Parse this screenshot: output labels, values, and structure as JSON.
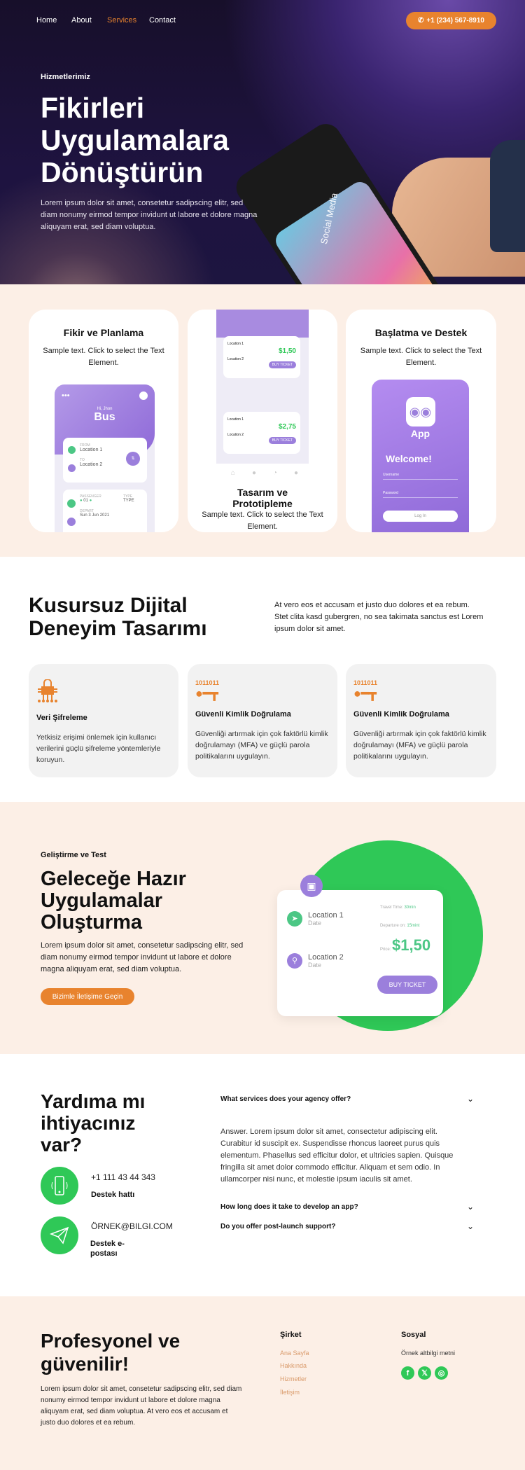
{
  "nav": {
    "items": [
      "Home",
      "About",
      "Services",
      "Contact"
    ],
    "active": "Services",
    "phone": "+1 (234) 567-8910"
  },
  "hero": {
    "eyebrow": "Hizmetlerimiz",
    "title_lines": [
      "Fikirleri",
      "Uygulamalara",
      "Dönüştürün"
    ],
    "text": "Lorem ipsum dolor sit amet, consetetur sadipscing elitr, sed diam nonumy eirmod tempor invidunt ut labore et dolore magna aliquyam erat, sed diam voluptua.",
    "phone_label": "Social Media"
  },
  "process": [
    {
      "title": "Fikir ve Planlama",
      "text": "Sample text. Click to select the Text Element.",
      "mock": {
        "greeting": "Hi, Jhon",
        "title": "Bus",
        "from_label": "FROM",
        "from": "Location 1",
        "to_label": "TO",
        "to": "Location 2",
        "passenger_label": "PASSENGER",
        "passenger": "01",
        "type_label": "TYPE",
        "type": "TYPE",
        "depart_label": "DEPART",
        "depart": "Sun 3 Jun 2021"
      }
    },
    {
      "title": "Tasarım ve Prototipleme",
      "text": "Sample text. Click to select the Text Element.",
      "mock": {
        "loc1": "Location 1",
        "loc2": "Location 2",
        "price1": "$1,50",
        "price2": "$2,75",
        "buy": "BUY TICKET"
      }
    },
    {
      "title": "Başlatma ve Destek",
      "text": "Sample text. Click to select the Text Element.",
      "mock": {
        "app": "App",
        "welcome": "Welcome!",
        "username": "Username",
        "password": "Password",
        "login": "Log In"
      }
    }
  ],
  "design": {
    "title_lines": [
      "Kusursuz Dijital",
      "Deneyim Tasarımı"
    ],
    "text": "At vero eos et accusam et justo duo dolores et ea rebum. Stet clita kasd gubergren, no sea takimata sanctus est Lorem ipsum dolor sit amet.",
    "features": [
      {
        "icon": "lock-network-icon",
        "title": "Veri Şifreleme",
        "text": "Yetkisiz erişimi önlemek için kullanıcı verilerini güçlü şifreleme yöntemleriyle koruyun."
      },
      {
        "icon": "binary-key-icon",
        "title": "Güvenli Kimlik Doğrulama",
        "text": "Güvenliği artırmak için çok faktörlü kimlik doğrulamayı (MFA) ve güçlü parola politikalarını uygulayın."
      },
      {
        "icon": "binary-key-icon",
        "title": "Güvenli Kimlik Doğrulama",
        "text": "Güvenliği artırmak için çok faktörlü kimlik doğrulamayı (MFA) ve güçlü parola politikalarını uygulayın."
      }
    ],
    "binary": "1011011"
  },
  "dev": {
    "eyebrow": "Geliştirme ve Test",
    "title_lines": [
      "Geleceğe Hazır",
      "Uygulamalar",
      "Oluşturma"
    ],
    "text": "Lorem ipsum dolor sit amet, consetetur sadipscing elitr, sed diam nonumy eirmod tempor invidunt ut labore et dolore magna aliquyam erat, sed diam voluptua.",
    "cta": "Bizimle İletişime Geçin",
    "ticket": {
      "loc1": "Location 1",
      "loc2": "Location 2",
      "date": "Date",
      "travel_label": "Travel Time:",
      "travel": "30min",
      "departure_label": "Departure on:",
      "departure": "15mint",
      "price_label": "Price:",
      "price": "$1,50",
      "buy": "BUY TICKET"
    }
  },
  "help": {
    "title_lines": [
      "Yardıma mı",
      "ihtiyacınız",
      "var?"
    ],
    "phone": "+1 111 43 44 343",
    "phone_label": "Destek hattı",
    "email": "ÖRNEK@BILGI.COM",
    "email_label_lines": [
      "Destek e-",
      "postası"
    ],
    "faq": [
      {
        "q": "What services does your agency offer?",
        "a": "Answer. Lorem ipsum dolor sit amet, consectetur adipiscing elit. Curabitur id suscipit ex. Suspendisse rhoncus laoreet purus quis elementum. Phasellus sed efficitur dolor, et ultricies sapien. Quisque fringilla sit amet dolor commodo efficitur. Aliquam et sem odio. In ullamcorper nisi nunc, et molestie ipsum iaculis sit amet.",
        "open": true
      },
      {
        "q": "How long does it take to develop an app?",
        "open": false
      },
      {
        "q": "Do you offer post-launch support?",
        "open": false
      }
    ]
  },
  "footer": {
    "title_lines": [
      "Profesyonel ve",
      "güvenilir!"
    ],
    "text": "Lorem ipsum dolor sit amet, consetetur sadipscing elitr, sed diam nonumy eirmod tempor invidunt ut labore et dolore magna aliquyam erat, sed diam voluptua. At vero eos et accusam et justo duo dolores et ea rebum.",
    "company_title": "Şirket",
    "links": [
      "Ana Sayfa",
      "Hakkında",
      "Hizmetler",
      "İletişim"
    ],
    "social_title": "Sosyal",
    "social_text": "Örnek altbilgi metni",
    "social": [
      "facebook-icon",
      "x-icon",
      "instagram-icon"
    ]
  },
  "colors": {
    "accent": "#e8832e",
    "green": "#2fc857",
    "purple": "#9b7fdc",
    "peach": "#fcefe6"
  }
}
